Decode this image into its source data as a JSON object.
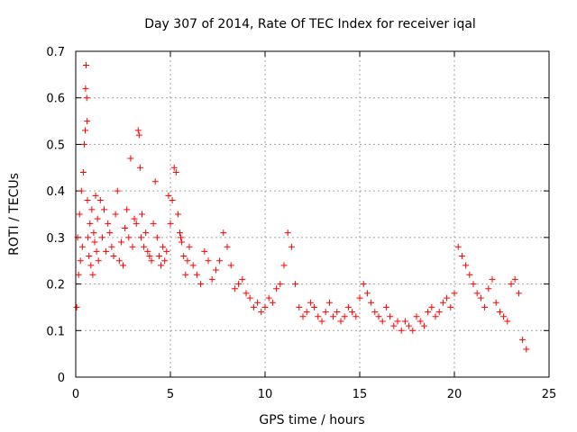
{
  "chart_data": {
    "type": "scatter",
    "title": "Day 307 of 2014, Rate Of TEC Index for receiver iqal",
    "xlabel": "GPS time / hours",
    "ylabel": "ROTI / TECUs",
    "xlim": [
      0,
      25
    ],
    "ylim": [
      0,
      0.7
    ],
    "xticks": [
      0,
      5,
      10,
      15,
      20,
      25
    ],
    "yticks": [
      0,
      0.1,
      0.2,
      0.3,
      0.4,
      0.5,
      0.6,
      0.7
    ],
    "xtick_labels": [
      "0",
      "5",
      "10",
      "15",
      "20",
      "25"
    ],
    "ytick_labels": [
      "0",
      "0.1",
      "0.2",
      "0.3",
      "0.4",
      "0.5",
      "0.6",
      "0.7"
    ],
    "grid": true,
    "marker": "+",
    "color": "#ff0000",
    "series": [
      {
        "name": "ROTI",
        "x": [
          0.05,
          0.1,
          0.15,
          0.2,
          0.25,
          0.3,
          0.35,
          0.4,
          0.45,
          0.5,
          0.52,
          0.55,
          0.58,
          0.6,
          0.62,
          0.65,
          0.7,
          0.75,
          0.8,
          0.85,
          0.9,
          0.95,
          1.0,
          1.05,
          1.1,
          1.15,
          1.2,
          1.3,
          1.4,
          1.5,
          1.6,
          1.7,
          1.8,
          1.9,
          2.0,
          2.1,
          2.2,
          2.3,
          2.4,
          2.5,
          2.6,
          2.7,
          2.8,
          2.9,
          3.0,
          3.1,
          3.2,
          3.3,
          3.35,
          3.4,
          3.45,
          3.5,
          3.6,
          3.7,
          3.8,
          3.9,
          4.0,
          4.1,
          4.2,
          4.3,
          4.4,
          4.5,
          4.6,
          4.7,
          4.8,
          4.9,
          5.0,
          5.1,
          5.2,
          5.3,
          5.4,
          5.5,
          5.55,
          5.6,
          5.7,
          5.8,
          5.9,
          6.0,
          6.2,
          6.4,
          6.6,
          6.8,
          7.0,
          7.2,
          7.4,
          7.6,
          7.8,
          8.0,
          8.2,
          8.4,
          8.6,
          8.8,
          9.0,
          9.2,
          9.4,
          9.6,
          9.8,
          10.0,
          10.2,
          10.4,
          10.6,
          10.8,
          11.0,
          11.2,
          11.4,
          11.6,
          11.8,
          12.0,
          12.2,
          12.4,
          12.6,
          12.8,
          13.0,
          13.2,
          13.4,
          13.6,
          13.8,
          14.0,
          14.2,
          14.4,
          14.6,
          14.8,
          15.0,
          15.2,
          15.4,
          15.6,
          15.8,
          16.0,
          16.2,
          16.4,
          16.6,
          16.8,
          17.0,
          17.2,
          17.4,
          17.6,
          17.8,
          18.0,
          18.2,
          18.4,
          18.6,
          18.8,
          19.0,
          19.2,
          19.4,
          19.6,
          19.8,
          20.0,
          20.2,
          20.4,
          20.6,
          20.8,
          21.0,
          21.2,
          21.4,
          21.6,
          21.8,
          22.0,
          22.2,
          22.4,
          22.6,
          22.8,
          23.0,
          23.2,
          23.4,
          23.6,
          23.8
        ],
        "y": [
          0.15,
          0.3,
          0.22,
          0.35,
          0.25,
          0.4,
          0.28,
          0.44,
          0.5,
          0.53,
          0.62,
          0.67,
          0.6,
          0.55,
          0.38,
          0.3,
          0.26,
          0.33,
          0.24,
          0.36,
          0.22,
          0.31,
          0.29,
          0.39,
          0.27,
          0.34,
          0.25,
          0.38,
          0.3,
          0.36,
          0.27,
          0.33,
          0.31,
          0.28,
          0.26,
          0.35,
          0.4,
          0.25,
          0.29,
          0.24,
          0.32,
          0.36,
          0.3,
          0.47,
          0.28,
          0.34,
          0.33,
          0.53,
          0.52,
          0.45,
          0.3,
          0.35,
          0.28,
          0.31,
          0.27,
          0.26,
          0.25,
          0.33,
          0.42,
          0.3,
          0.26,
          0.24,
          0.28,
          0.25,
          0.27,
          0.39,
          0.33,
          0.38,
          0.45,
          0.44,
          0.35,
          0.31,
          0.3,
          0.29,
          0.26,
          0.22,
          0.25,
          0.28,
          0.24,
          0.22,
          0.2,
          0.27,
          0.25,
          0.21,
          0.23,
          0.25,
          0.31,
          0.28,
          0.24,
          0.19,
          0.2,
          0.21,
          0.18,
          0.17,
          0.15,
          0.16,
          0.14,
          0.15,
          0.17,
          0.16,
          0.19,
          0.2,
          0.24,
          0.31,
          0.28,
          0.2,
          0.15,
          0.13,
          0.14,
          0.16,
          0.15,
          0.13,
          0.12,
          0.14,
          0.16,
          0.13,
          0.14,
          0.12,
          0.13,
          0.15,
          0.14,
          0.13,
          0.17,
          0.2,
          0.18,
          0.16,
          0.14,
          0.13,
          0.12,
          0.15,
          0.13,
          0.11,
          0.12,
          0.1,
          0.12,
          0.11,
          0.1,
          0.13,
          0.12,
          0.11,
          0.14,
          0.15,
          0.13,
          0.14,
          0.16,
          0.17,
          0.15,
          0.18,
          0.28,
          0.26,
          0.24,
          0.22,
          0.2,
          0.18,
          0.17,
          0.15,
          0.19,
          0.21,
          0.16,
          0.14,
          0.13,
          0.12,
          0.2,
          0.21,
          0.18,
          0.08,
          0.06
        ]
      }
    ]
  }
}
